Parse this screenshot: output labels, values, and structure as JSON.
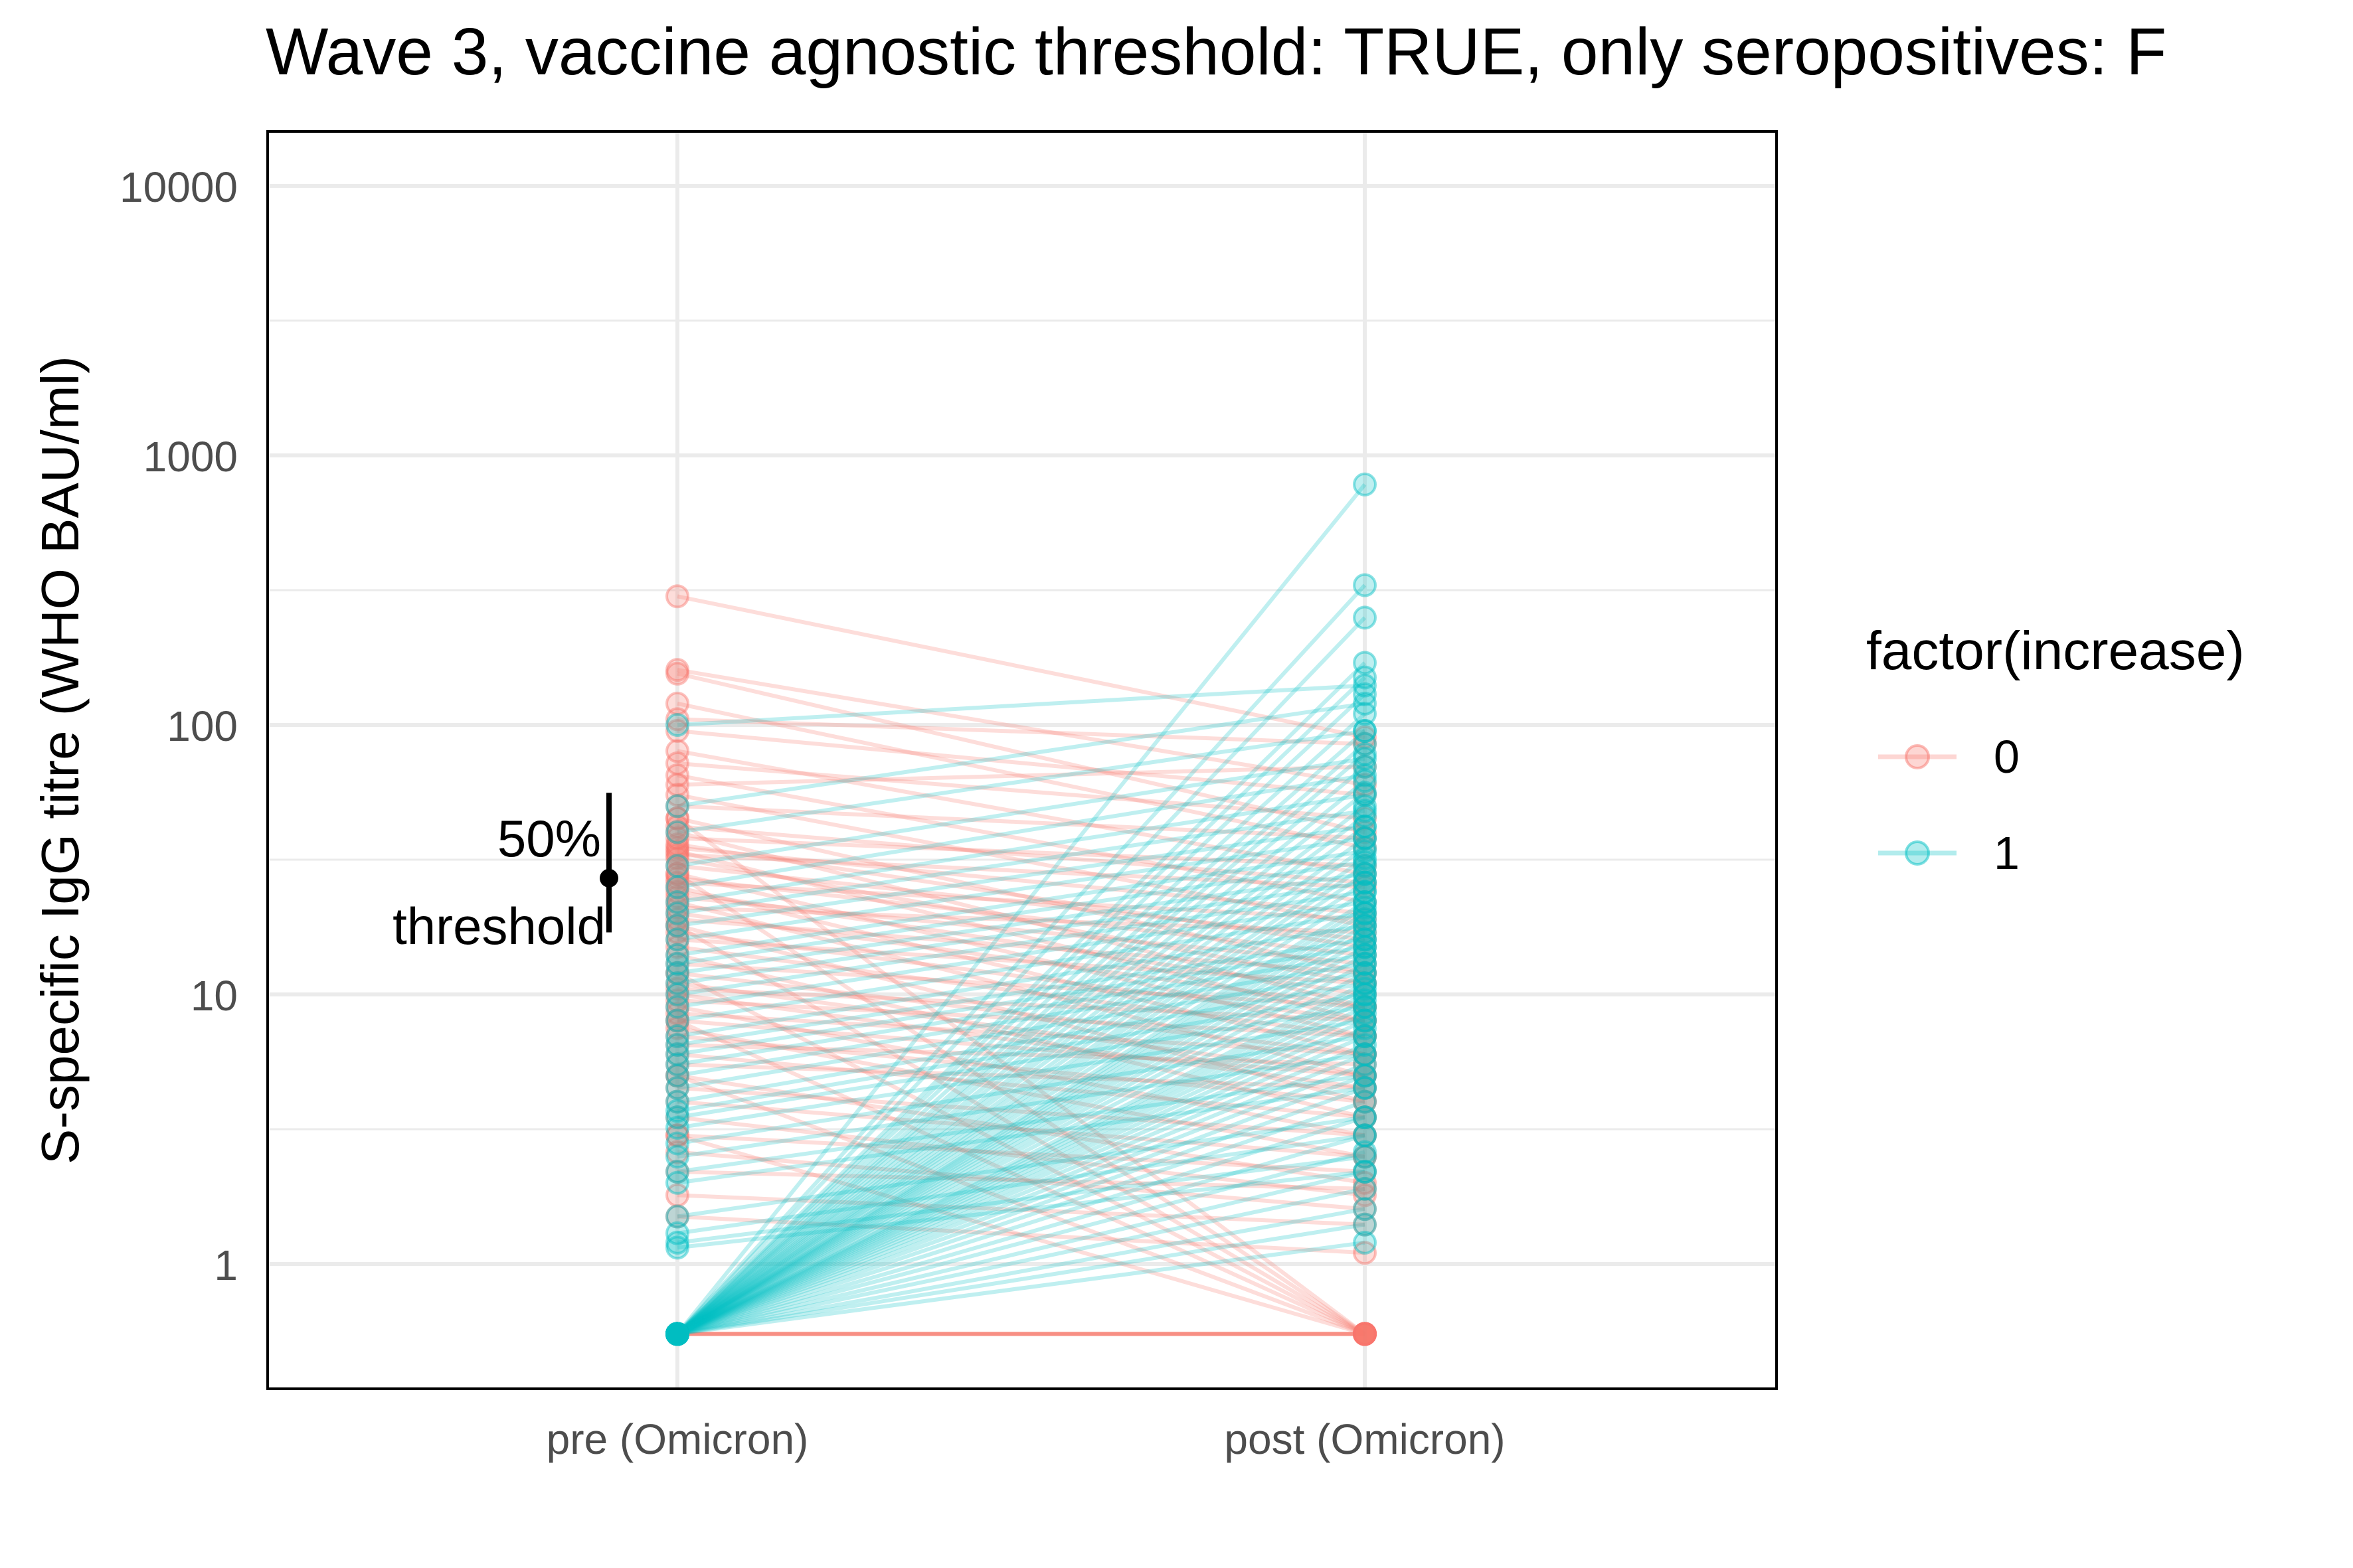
{
  "chart_data": {
    "type": "line",
    "title": "Wave 3, vaccine agnostic threshold: TRUE, only seropositives: F",
    "ylabel": "S-specific IgG titre (WHO BAU/ml)",
    "xlabel": "",
    "y_scale": "log10",
    "ylim": [
      0.4,
      16000
    ],
    "y_ticks": [
      1,
      10,
      100,
      1000,
      10000
    ],
    "y_tick_labels": [
      "1",
      "10",
      "100",
      "1000",
      "10000"
    ],
    "categories": [
      "pre (Omicron)",
      "post (Omicron)"
    ],
    "grid": true,
    "legend": {
      "title": "factor(increase)",
      "position": "right",
      "entries": [
        {
          "label": "0",
          "color": "#F8766D"
        },
        {
          "label": "1",
          "color": "#00BFC4"
        }
      ]
    },
    "annotation": {
      "text_line1": "50%",
      "text_line2": "threshold",
      "center": 27,
      "low": 17,
      "high": 56
    },
    "series": [
      {
        "increase": "0",
        "color": "#F8766D",
        "pairs": [
          [
            300,
            90
          ],
          [
            160,
            60
          ],
          [
            155,
            40
          ],
          [
            120,
            35
          ],
          [
            105,
            85
          ],
          [
            95,
            55
          ],
          [
            80,
            28
          ],
          [
            72,
            45
          ],
          [
            65,
            22
          ],
          [
            60,
            70
          ],
          [
            55,
            18
          ],
          [
            50,
            38
          ],
          [
            45,
            12
          ],
          [
            42,
            26
          ],
          [
            40,
            9
          ],
          [
            38,
            30
          ],
          [
            36,
            15
          ],
          [
            35,
            20
          ],
          [
            34,
            8
          ],
          [
            33,
            25
          ],
          [
            32,
            11
          ],
          [
            30,
            16
          ],
          [
            28,
            7
          ],
          [
            27,
            14
          ],
          [
            26,
            19
          ],
          [
            25,
            6
          ],
          [
            24,
            10
          ],
          [
            23,
            13
          ],
          [
            22,
            5
          ],
          [
            21,
            17
          ],
          [
            20,
            9
          ],
          [
            19,
            12
          ],
          [
            18,
            4
          ],
          [
            17,
            8
          ],
          [
            16,
            11
          ],
          [
            15,
            7
          ],
          [
            14,
            3.5
          ],
          [
            13,
            9
          ],
          [
            12,
            6
          ],
          [
            11,
            5
          ],
          [
            10.5,
            8
          ],
          [
            10,
            4.5
          ],
          [
            9.5,
            7
          ],
          [
            9,
            3
          ],
          [
            8.5,
            6
          ],
          [
            8,
            5
          ],
          [
            7.5,
            2.5
          ],
          [
            7,
            4
          ],
          [
            6.5,
            5.5
          ],
          [
            6,
            3.5
          ],
          [
            5.5,
            4.5
          ],
          [
            5,
            2
          ],
          [
            4.5,
            3
          ],
          [
            4,
            2.5
          ],
          [
            3.5,
            1.8
          ],
          [
            3,
            2.2
          ],
          [
            2.6,
            1.6
          ],
          [
            2.2,
            1.9
          ],
          [
            1.8,
            1.4
          ],
          [
            1.5,
            1.1
          ],
          [
            45,
            0.55
          ],
          [
            28,
            0.55
          ],
          [
            18,
            0.55
          ],
          [
            12,
            0.55
          ],
          [
            8,
            0.55
          ],
          [
            5,
            0.55
          ],
          [
            3,
            0.55
          ],
          [
            0.55,
            0.55
          ],
          [
            0.55,
            0.55
          ],
          [
            0.55,
            0.55
          ],
          [
            0.55,
            0.55
          ],
          [
            0.55,
            0.55
          ],
          [
            0.55,
            0.55
          ]
        ]
      },
      {
        "increase": "1",
        "color": "#00BFC4",
        "pairs": [
          [
            0.55,
            780
          ],
          [
            0.55,
            330
          ],
          [
            0.55,
            250
          ],
          [
            0.55,
            170
          ],
          [
            0.55,
            150
          ],
          [
            0.55,
            130
          ],
          [
            0.55,
            110
          ],
          [
            0.55,
            95
          ],
          [
            0.55,
            85
          ],
          [
            0.55,
            78
          ],
          [
            0.55,
            70
          ],
          [
            0.55,
            62
          ],
          [
            0.55,
            56
          ],
          [
            0.55,
            50
          ],
          [
            0.55,
            46
          ],
          [
            0.55,
            42
          ],
          [
            0.55,
            38
          ],
          [
            0.55,
            35
          ],
          [
            0.55,
            32
          ],
          [
            0.55,
            30
          ],
          [
            0.55,
            28
          ],
          [
            0.55,
            26
          ],
          [
            0.55,
            24
          ],
          [
            0.55,
            22
          ],
          [
            0.55,
            21
          ],
          [
            0.55,
            20
          ],
          [
            0.55,
            19
          ],
          [
            0.55,
            18
          ],
          [
            0.55,
            17
          ],
          [
            0.55,
            16
          ],
          [
            0.55,
            15
          ],
          [
            0.55,
            14
          ],
          [
            0.55,
            13
          ],
          [
            0.55,
            12
          ],
          [
            0.55,
            11
          ],
          [
            0.55,
            10.5
          ],
          [
            0.55,
            10
          ],
          [
            0.55,
            9.5
          ],
          [
            0.55,
            9
          ],
          [
            0.55,
            8.5
          ],
          [
            0.55,
            8
          ],
          [
            0.55,
            7.5
          ],
          [
            0.55,
            7
          ],
          [
            0.55,
            6.5
          ],
          [
            0.55,
            6
          ],
          [
            0.55,
            5.5
          ],
          [
            0.55,
            5
          ],
          [
            0.55,
            4.5
          ],
          [
            0.55,
            4
          ],
          [
            0.55,
            3.5
          ],
          [
            0.55,
            3
          ],
          [
            0.55,
            2.6
          ],
          [
            0.55,
            2.2
          ],
          [
            0.55,
            1.9
          ],
          [
            0.55,
            1.6
          ],
          [
            0.55,
            1.4
          ],
          [
            0.55,
            1.2
          ],
          [
            100,
            140
          ],
          [
            50,
            120
          ],
          [
            40,
            95
          ],
          [
            30,
            75
          ],
          [
            25,
            65
          ],
          [
            22,
            55
          ],
          [
            20,
            48
          ],
          [
            18,
            42
          ],
          [
            16,
            38
          ],
          [
            14,
            34
          ],
          [
            13,
            31
          ],
          [
            12,
            28
          ],
          [
            11,
            26
          ],
          [
            10,
            24
          ],
          [
            9,
            22
          ],
          [
            8,
            20
          ],
          [
            7,
            18
          ],
          [
            6.5,
            16
          ],
          [
            6,
            15
          ],
          [
            5.5,
            14
          ],
          [
            5,
            13
          ],
          [
            4.5,
            12
          ],
          [
            4,
            11
          ],
          [
            3.7,
            10
          ],
          [
            3.5,
            9
          ],
          [
            3.2,
            8
          ],
          [
            2.8,
            7
          ],
          [
            2.5,
            6
          ],
          [
            2.2,
            5
          ],
          [
            2,
            4.5
          ],
          [
            1.5,
            3.5
          ],
          [
            1.3,
            3
          ],
          [
            1.2,
            2.5
          ],
          [
            1.15,
            2.2
          ]
        ]
      }
    ]
  }
}
